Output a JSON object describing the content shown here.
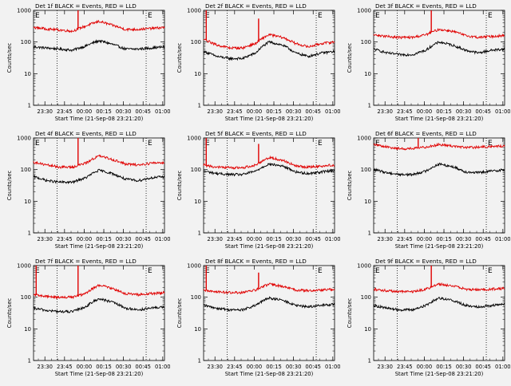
{
  "figure": {
    "time_labels": [
      "23:30",
      "23:45",
      "00:00",
      "00:15",
      "00:30",
      "00:45",
      "01:00"
    ],
    "xlabel": "Start Time (21-Sep-08 23:21:20)",
    "ylabel": "Counts/sec",
    "y_ticks": [
      "1",
      "10",
      "100",
      "1000"
    ],
    "marker_label": "E"
  },
  "chart_data": [
    {
      "type": "line",
      "title": "Det 1f BLACK = Events, RED = LLD",
      "xlabel": "Start Time (21-Sep-08 23:21:20)",
      "ylabel": "Counts/sec",
      "y_scale": "log",
      "ylim": [
        1,
        1000
      ],
      "xlim_minutes": [
        0,
        100
      ],
      "x": [
        0,
        10,
        20,
        30,
        40,
        50,
        60,
        70,
        80,
        90,
        100
      ],
      "series": [
        {
          "name": "Events",
          "color": "#000000",
          "values": [
            70,
            65,
            60,
            55,
            75,
            110,
            85,
            60,
            60,
            65,
            70
          ]
        },
        {
          "name": "LLD",
          "color": "#e00000",
          "values": [
            290,
            260,
            240,
            220,
            320,
            450,
            340,
            250,
            250,
            270,
            290
          ],
          "spikes": [
            {
              "x": 34,
              "y": 1000
            }
          ]
        }
      ],
      "markers": [
        {
          "label": "E",
          "x": 0
        },
        {
          "label": "E",
          "x": 86
        }
      ],
      "vlines_x": [
        18,
        86
      ]
    },
    {
      "type": "line",
      "title": "Det 2f BLACK = Events, RED = LLD",
      "xlabel": "Start Time (21-Sep-08 23:21:20)",
      "ylabel": "Counts/sec",
      "y_scale": "log",
      "ylim": [
        1,
        1000
      ],
      "xlim_minutes": [
        0,
        100
      ],
      "x": [
        0,
        10,
        20,
        30,
        40,
        50,
        60,
        70,
        80,
        90,
        100
      ],
      "series": [
        {
          "name": "Events",
          "color": "#000000",
          "values": [
            50,
            35,
            30,
            30,
            45,
            100,
            80,
            45,
            35,
            45,
            50
          ]
        },
        {
          "name": "LLD",
          "color": "#e00000",
          "values": [
            120,
            80,
            65,
            65,
            90,
            170,
            140,
            90,
            70,
            90,
            100
          ],
          "spikes": [
            {
              "x": 2,
              "y": 1000
            },
            {
              "x": 42,
              "y": 550
            }
          ]
        }
      ],
      "markers": [
        {
          "label": "E",
          "x": 0
        },
        {
          "label": "E",
          "x": 86
        }
      ],
      "vlines_x": [
        18,
        86
      ]
    },
    {
      "type": "line",
      "title": "Det 3f BLACK = Events, RED = LLD",
      "xlabel": "Start Time (21-Sep-08 23:21:20)",
      "ylabel": "Counts/sec",
      "y_scale": "log",
      "ylim": [
        1,
        1000
      ],
      "xlim_minutes": [
        0,
        100
      ],
      "x": [
        0,
        10,
        20,
        30,
        40,
        50,
        60,
        70,
        80,
        90,
        100
      ],
      "series": [
        {
          "name": "Events",
          "color": "#000000",
          "values": [
            60,
            45,
            40,
            40,
            55,
            100,
            80,
            55,
            45,
            55,
            60
          ]
        },
        {
          "name": "LLD",
          "color": "#e00000",
          "values": [
            170,
            150,
            140,
            140,
            170,
            250,
            220,
            160,
            140,
            150,
            160
          ],
          "spikes": [
            {
              "x": 44,
              "y": 1000
            }
          ]
        }
      ],
      "markers": [
        {
          "label": "E",
          "x": 0
        },
        {
          "label": "E",
          "x": 86
        }
      ],
      "vlines_x": [
        18,
        86
      ]
    },
    {
      "type": "line",
      "title": "Det 4f BLACK = Events, RED = LLD",
      "xlabel": "Start Time (21-Sep-08 23:21:20)",
      "ylabel": "Counts/sec",
      "y_scale": "log",
      "ylim": [
        1,
        1000
      ],
      "xlim_minutes": [
        0,
        100
      ],
      "x": [
        0,
        10,
        20,
        30,
        40,
        50,
        60,
        70,
        80,
        90,
        100
      ],
      "series": [
        {
          "name": "Events",
          "color": "#000000",
          "values": [
            60,
            45,
            40,
            40,
            55,
            95,
            75,
            50,
            45,
            55,
            60
          ]
        },
        {
          "name": "LLD",
          "color": "#e00000",
          "values": [
            170,
            140,
            120,
            120,
            160,
            270,
            210,
            150,
            140,
            160,
            170
          ],
          "spikes": [
            {
              "x": 34,
              "y": 1000
            }
          ]
        }
      ],
      "markers": [
        {
          "label": "E",
          "x": 0
        },
        {
          "label": "E",
          "x": 86
        }
      ],
      "vlines_x": [
        18,
        86
      ]
    },
    {
      "type": "line",
      "title": "Det 5f BLACK = Events, RED = LLD",
      "xlabel": "Start Time (21-Sep-08 23:21:20)",
      "ylabel": "Counts/sec",
      "y_scale": "log",
      "ylim": [
        1,
        1000
      ],
      "xlim_minutes": [
        0,
        100
      ],
      "x": [
        0,
        10,
        20,
        30,
        40,
        50,
        60,
        70,
        80,
        90,
        100
      ],
      "series": [
        {
          "name": "Events",
          "color": "#000000",
          "values": [
            90,
            75,
            70,
            70,
            90,
            150,
            130,
            85,
            75,
            85,
            95
          ]
        },
        {
          "name": "LLD",
          "color": "#e00000",
          "values": [
            140,
            120,
            115,
            115,
            140,
            240,
            200,
            130,
            120,
            130,
            140
          ],
          "spikes": [
            {
              "x": 2,
              "y": 1000
            },
            {
              "x": 42,
              "y": 650
            }
          ]
        }
      ],
      "markers": [
        {
          "label": "E",
          "x": 0
        },
        {
          "label": "E",
          "x": 86
        }
      ],
      "vlines_x": [
        18,
        86
      ]
    },
    {
      "type": "line",
      "title": "Det 6f BLACK = Events, RED = LLD",
      "xlabel": "Start Time (21-Sep-08 23:21:20)",
      "ylabel": "Counts/sec",
      "y_scale": "log",
      "ylim": [
        1,
        1000
      ],
      "xlim_minutes": [
        0,
        100
      ],
      "x": [
        0,
        10,
        20,
        30,
        40,
        50,
        60,
        70,
        80,
        90,
        100
      ],
      "series": [
        {
          "name": "Events",
          "color": "#000000",
          "values": [
            100,
            80,
            70,
            70,
            90,
            150,
            125,
            85,
            80,
            90,
            100
          ]
        },
        {
          "name": "LLD",
          "color": "#e00000",
          "values": [
            620,
            520,
            460,
            460,
            520,
            620,
            560,
            500,
            510,
            540,
            560
          ],
          "spikes": [
            {
              "x": 34,
              "y": 1000
            }
          ]
        }
      ],
      "markers": [
        {
          "label": "E",
          "x": 0
        },
        {
          "label": "E",
          "x": 86
        }
      ],
      "vlines_x": [
        18,
        86
      ]
    },
    {
      "type": "line",
      "title": "Det 7f BLACK = Events, RED = LLD",
      "xlabel": "Start Time (21-Sep-08 23:21:20)",
      "ylabel": "Counts/sec",
      "y_scale": "log",
      "ylim": [
        1,
        1000
      ],
      "xlim_minutes": [
        0,
        100
      ],
      "x": [
        0,
        10,
        20,
        30,
        40,
        50,
        60,
        70,
        80,
        90,
        100
      ],
      "series": [
        {
          "name": "Events",
          "color": "#000000",
          "values": [
            45,
            38,
            35,
            35,
            50,
            90,
            70,
            45,
            40,
            45,
            50
          ]
        },
        {
          "name": "LLD",
          "color": "#e00000",
          "values": [
            120,
            105,
            100,
            100,
            130,
            240,
            190,
            130,
            120,
            130,
            140
          ],
          "spikes": [
            {
              "x": 2,
              "y": 1000
            },
            {
              "x": 34,
              "y": 1000
            }
          ]
        }
      ],
      "markers": [
        {
          "label": "E",
          "x": 0
        },
        {
          "label": "E",
          "x": 86
        }
      ],
      "vlines_x": [
        18,
        86
      ]
    },
    {
      "type": "line",
      "title": "Det 8f BLACK = Events, RED = LLD",
      "xlabel": "Start Time (21-Sep-08 23:21:20)",
      "ylabel": "Counts/sec",
      "y_scale": "log",
      "ylim": [
        1,
        1000
      ],
      "xlim_minutes": [
        0,
        100
      ],
      "x": [
        0,
        10,
        20,
        30,
        40,
        50,
        60,
        70,
        80,
        90,
        100
      ],
      "series": [
        {
          "name": "Events",
          "color": "#000000",
          "values": [
            55,
            45,
            40,
            40,
            55,
            95,
            80,
            55,
            50,
            55,
            60
          ]
        },
        {
          "name": "LLD",
          "color": "#e00000",
          "values": [
            170,
            150,
            140,
            140,
            170,
            260,
            220,
            170,
            160,
            170,
            180
          ],
          "spikes": [
            {
              "x": 2,
              "y": 1000
            },
            {
              "x": 42,
              "y": 600
            }
          ]
        }
      ],
      "markers": [
        {
          "label": "E",
          "x": 0
        },
        {
          "label": "E",
          "x": 86
        }
      ],
      "vlines_x": [
        18,
        86
      ]
    },
    {
      "type": "line",
      "title": "Det 9f BLACK = Events, RED = LLD",
      "xlabel": "Start Time (21-Sep-08 23:21:20)",
      "ylabel": "Counts/sec",
      "y_scale": "log",
      "ylim": [
        1,
        1000
      ],
      "xlim_minutes": [
        0,
        100
      ],
      "x": [
        0,
        10,
        20,
        30,
        40,
        50,
        60,
        70,
        80,
        90,
        100
      ],
      "series": [
        {
          "name": "Events",
          "color": "#000000",
          "values": [
            55,
            45,
            40,
            40,
            55,
            95,
            80,
            55,
            50,
            55,
            60
          ]
        },
        {
          "name": "LLD",
          "color": "#e00000",
          "values": [
            180,
            160,
            150,
            150,
            180,
            260,
            230,
            180,
            170,
            180,
            190
          ],
          "spikes": [
            {
              "x": 44,
              "y": 1000
            }
          ]
        }
      ],
      "markers": [
        {
          "label": "E",
          "x": 0
        },
        {
          "label": "E",
          "x": 86
        }
      ],
      "vlines_x": [
        18,
        86
      ]
    }
  ]
}
